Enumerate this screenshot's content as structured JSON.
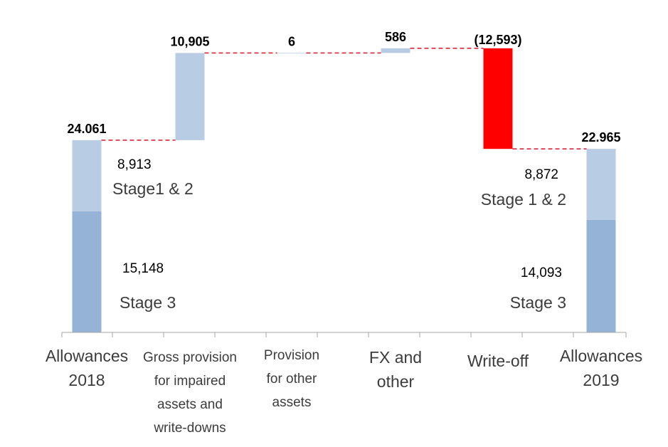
{
  "chart_data": {
    "type": "bar",
    "subtype": "waterfall",
    "categories": [
      [
        "Allowances",
        "2018"
      ],
      [
        "Gross provision",
        "for impaired",
        "assets and",
        "write-downs"
      ],
      [
        "Provision",
        "for other",
        "assets"
      ],
      [
        "FX and",
        "other"
      ],
      [
        "Write-off"
      ],
      [
        "Allowances",
        "2019"
      ]
    ],
    "bars": [
      {
        "kind": "total",
        "label": "24.061",
        "segments": [
          {
            "name": "Stage 3",
            "value": 15148,
            "value_label": "15,148",
            "stage_label": "Stage 3"
          },
          {
            "name": "Stage 1 & 2",
            "value": 8913,
            "value_label": "8,913",
            "stage_label": "Stage1 & 2"
          }
        ]
      },
      {
        "kind": "delta",
        "value": 10905,
        "label": "10,905"
      },
      {
        "kind": "delta",
        "value": 6,
        "label": "6"
      },
      {
        "kind": "delta",
        "value": 586,
        "label": "586"
      },
      {
        "kind": "delta",
        "value": -12593,
        "label": "(12,593)"
      },
      {
        "kind": "total",
        "label": "22.965",
        "segments": [
          {
            "name": "Stage 3",
            "value": 14093,
            "value_label": "14,093",
            "stage_label": "Stage 3"
          },
          {
            "name": "Stage 1 & 2",
            "value": 8872,
            "value_label": "8,872",
            "stage_label": "Stage 1 & 2"
          }
        ]
      }
    ],
    "ylim": [
      0,
      36000
    ],
    "colors": {
      "stage3": "#95b3d7",
      "stage12": "#b8cce4",
      "increase": "#b8cce4",
      "decrease": "#ff0000",
      "connector": "#d8263a",
      "axis": "#a6a6a6"
    }
  }
}
